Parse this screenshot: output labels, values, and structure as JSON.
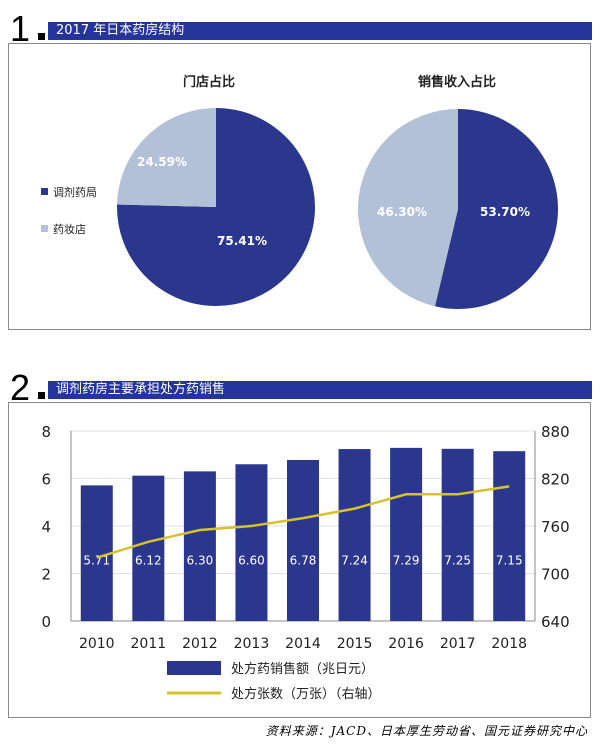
{
  "section1": {
    "number": "1",
    "title": "2017 年日本药房结构"
  },
  "section2": {
    "number": "2",
    "title": "调剂药房主要承担处方药销售"
  },
  "colors": {
    "navy": "#2b378d",
    "light": "#b3c1d8",
    "yellow": "#d6c12f",
    "header": "#25349a"
  },
  "chart_data": [
    {
      "type": "pie",
      "title": "门店占比",
      "labels": [
        "调剂药局",
        "药妆店"
      ],
      "values": [
        75.41,
        24.59
      ],
      "value_labels": [
        "75.41%",
        "24.59%"
      ],
      "legend": {
        "placement": "left",
        "entries": [
          "调剂药局",
          "药妆店"
        ]
      }
    },
    {
      "type": "pie",
      "title": "销售收入占比",
      "labels": [
        "调剂药局",
        "药妆店"
      ],
      "values": [
        53.7,
        46.3
      ],
      "value_labels": [
        "53.70%",
        "46.30%"
      ]
    },
    {
      "type": "bar",
      "categories": [
        "2010",
        "2011",
        "2012",
        "2013",
        "2014",
        "2015",
        "2016",
        "2017",
        "2018"
      ],
      "series": [
        {
          "name": "处方药销售额（兆日元）",
          "type": "bar",
          "values": [
            5.71,
            6.12,
            6.3,
            6.6,
            6.78,
            7.24,
            7.29,
            7.25,
            7.15
          ],
          "value_labels": [
            "5.71",
            "6.12",
            "6.30",
            "6.60",
            "6.78",
            "7.24",
            "7.29",
            "7.25",
            "7.15"
          ]
        },
        {
          "name": "处方张数（万张）（右轴）",
          "type": "line",
          "axis": "right",
          "values": [
            720,
            740,
            755,
            760,
            770,
            782,
            800,
            800,
            810
          ]
        }
      ],
      "ylim": [
        0,
        8
      ],
      "yticks": [
        "0",
        "2",
        "4",
        "6",
        "8"
      ],
      "y2lim": [
        640,
        880
      ],
      "y2ticks": [
        "640",
        "700",
        "760",
        "820",
        "880"
      ],
      "legend": {
        "placement": "bottom",
        "entries": [
          "处方药销售额（兆日元）",
          "处方张数（万张）（右轴）"
        ]
      }
    }
  ],
  "source": "资料来源：JACD、日本厚生劳动省、国元证券研究中心"
}
